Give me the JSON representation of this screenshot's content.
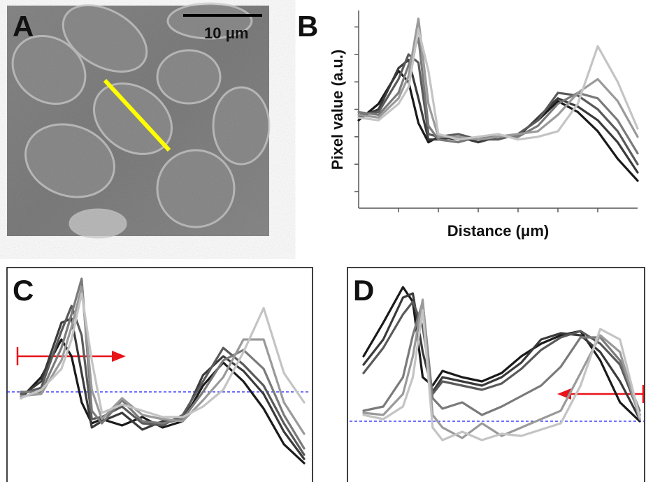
{
  "image_panel": {
    "label": "A",
    "scale_bar": "10 μm"
  },
  "chart_data": [
    {
      "type": "line",
      "label": "B",
      "xlabel": "Distance (μm)",
      "ylabel": "Pixel value (a.u.)",
      "x": [
        0,
        0.5,
        1,
        1.25,
        1.5,
        1.75,
        2,
        2.5,
        3,
        3.5,
        4,
        4.5,
        5,
        5.5,
        6,
        6.5,
        7
      ],
      "xlim": [
        0,
        7
      ],
      "xticks": [
        1,
        2,
        3,
        4,
        5,
        6
      ],
      "ylim": [
        -0.6,
        6.6
      ],
      "yticks": [
        0,
        1,
        2,
        3,
        4,
        5,
        6
      ],
      "series": [
        {
          "color": "#1a1a1a",
          "values": [
            2.6,
            3.2,
            4.4,
            4.0,
            2.5,
            1.8,
            2.0,
            1.9,
            1.9,
            2.0,
            2.1,
            2.6,
            3.3,
            2.9,
            2.2,
            1.2,
            0.4
          ]
        },
        {
          "color": "#3a3a3a",
          "values": [
            2.7,
            3.0,
            4.5,
            4.8,
            3.4,
            1.9,
            1.9,
            2.0,
            1.8,
            2.0,
            2.0,
            2.7,
            3.4,
            3.1,
            2.6,
            1.8,
            0.7
          ]
        },
        {
          "color": "#5a5a5a",
          "values": [
            2.8,
            2.9,
            4.1,
            5.0,
            4.7,
            2.1,
            2.0,
            2.1,
            1.9,
            1.9,
            2.1,
            2.6,
            3.6,
            3.5,
            3.0,
            2.2,
            1.0
          ]
        },
        {
          "color": "#7a7a7a",
          "values": [
            2.9,
            2.8,
            3.6,
            4.6,
            5.6,
            2.4,
            1.9,
            1.8,
            2.0,
            2.0,
            2.0,
            2.4,
            3.2,
            3.6,
            3.4,
            2.6,
            1.4
          ]
        },
        {
          "color": "#9a9a9a",
          "values": [
            2.8,
            2.7,
            3.4,
            4.2,
            6.3,
            3.2,
            2.0,
            2.0,
            1.9,
            2.0,
            2.1,
            2.2,
            2.8,
            3.6,
            4.1,
            3.3,
            2.0
          ]
        },
        {
          "color": "#c4c4c4",
          "values": [
            2.7,
            2.6,
            3.2,
            3.8,
            5.9,
            4.4,
            2.1,
            1.9,
            2.0,
            2.1,
            1.9,
            2.0,
            2.2,
            3.2,
            5.3,
            4.0,
            2.3
          ]
        }
      ]
    },
    {
      "type": "line",
      "label": "C",
      "x": [
        0,
        0.5,
        1,
        1.25,
        1.5,
        1.75,
        2,
        2.5,
        3,
        3.5,
        4,
        4.5,
        5,
        5.5,
        6,
        6.5,
        7
      ],
      "xlim": [
        0,
        7
      ],
      "ylim": [
        0,
        10
      ],
      "hline": 4.3,
      "series": [
        {
          "color": "#1a1a1a",
          "values": [
            4.0,
            5.0,
            6.8,
            6.0,
            3.8,
            2.8,
            3.0,
            2.7,
            3.1,
            2.6,
            2.9,
            4.6,
            5.7,
            4.8,
            3.5,
            1.8,
            0.9
          ]
        },
        {
          "color": "#3a3a3a",
          "values": [
            4.1,
            4.8,
            7.6,
            7.8,
            5.2,
            2.6,
            2.9,
            3.3,
            2.5,
            2.9,
            3.0,
            5.1,
            6.0,
            5.3,
            4.2,
            2.4,
            1.1
          ]
        },
        {
          "color": "#5a5a5a",
          "values": [
            4.2,
            4.5,
            7.2,
            8.4,
            7.0,
            3.0,
            3.1,
            3.6,
            2.8,
            2.7,
            3.2,
            4.8,
            6.4,
            5.6,
            4.6,
            2.8,
            1.3
          ]
        },
        {
          "color": "#7a7a7a",
          "values": [
            4.3,
            4.3,
            6.4,
            8.0,
            9.7,
            3.4,
            2.8,
            3.9,
            2.9,
            2.8,
            3.0,
            4.3,
            5.8,
            6.3,
            5.4,
            3.2,
            1.6
          ]
        },
        {
          "color": "#9a9a9a",
          "values": [
            4.1,
            4.2,
            5.8,
            7.4,
            9.3,
            4.4,
            3.0,
            4.0,
            3.2,
            3.0,
            2.9,
            3.9,
            5.0,
            6.8,
            6.8,
            3.8,
            2.3
          ]
        },
        {
          "color": "#c4c4c4",
          "values": [
            4.0,
            4.4,
            5.4,
            6.8,
            9.0,
            5.8,
            3.3,
            3.7,
            3.4,
            3.1,
            3.1,
            3.6,
            4.4,
            6.2,
            8.3,
            5.2,
            3.8
          ]
        }
      ]
    },
    {
      "type": "line",
      "label": "D",
      "x": [
        0,
        0.5,
        1,
        1.25,
        1.5,
        1.75,
        2,
        2.5,
        3,
        3.5,
        4,
        4.5,
        5,
        5.5,
        6,
        6.5,
        7
      ],
      "xlim": [
        0,
        7
      ],
      "ylim": [
        0,
        10
      ],
      "hline": 2.9,
      "series": [
        {
          "color": "#1a1a1a",
          "values": [
            6.0,
            7.6,
            9.3,
            8.6,
            5.0,
            4.6,
            5.3,
            5.0,
            4.8,
            5.2,
            6.0,
            6.6,
            7.0,
            7.2,
            5.8,
            3.8,
            2.9
          ]
        },
        {
          "color": "#3a3a3a",
          "values": [
            5.6,
            6.8,
            8.8,
            9.0,
            6.2,
            4.3,
            5.0,
            4.8,
            4.6,
            5.0,
            5.7,
            6.8,
            7.1,
            7.0,
            6.2,
            4.8,
            3.0
          ]
        },
        {
          "color": "#5a5a5a",
          "values": [
            5.2,
            6.4,
            8.0,
            8.6,
            7.4,
            4.2,
            4.8,
            4.6,
            4.4,
            4.7,
            5.4,
            6.3,
            6.9,
            7.2,
            6.6,
            5.6,
            3.2
          ]
        },
        {
          "color": "#7a7a7a",
          "values": [
            3.4,
            3.6,
            5.0,
            7.0,
            8.6,
            4.0,
            3.5,
            3.8,
            3.2,
            3.6,
            4.1,
            4.6,
            5.5,
            6.9,
            6.9,
            5.8,
            3.4
          ]
        },
        {
          "color": "#9a9a9a",
          "values": [
            3.3,
            3.2,
            4.2,
            6.0,
            8.7,
            3.2,
            2.6,
            2.1,
            2.8,
            2.2,
            2.6,
            3.0,
            3.4,
            5.2,
            7.0,
            6.2,
            3.0
          ]
        },
        {
          "color": "#c4c4c4",
          "values": [
            3.2,
            3.0,
            3.6,
            5.0,
            8.2,
            2.6,
            2.0,
            2.4,
            2.0,
            2.3,
            2.2,
            2.5,
            2.8,
            4.6,
            7.3,
            6.8,
            3.1
          ]
        }
      ]
    }
  ]
}
